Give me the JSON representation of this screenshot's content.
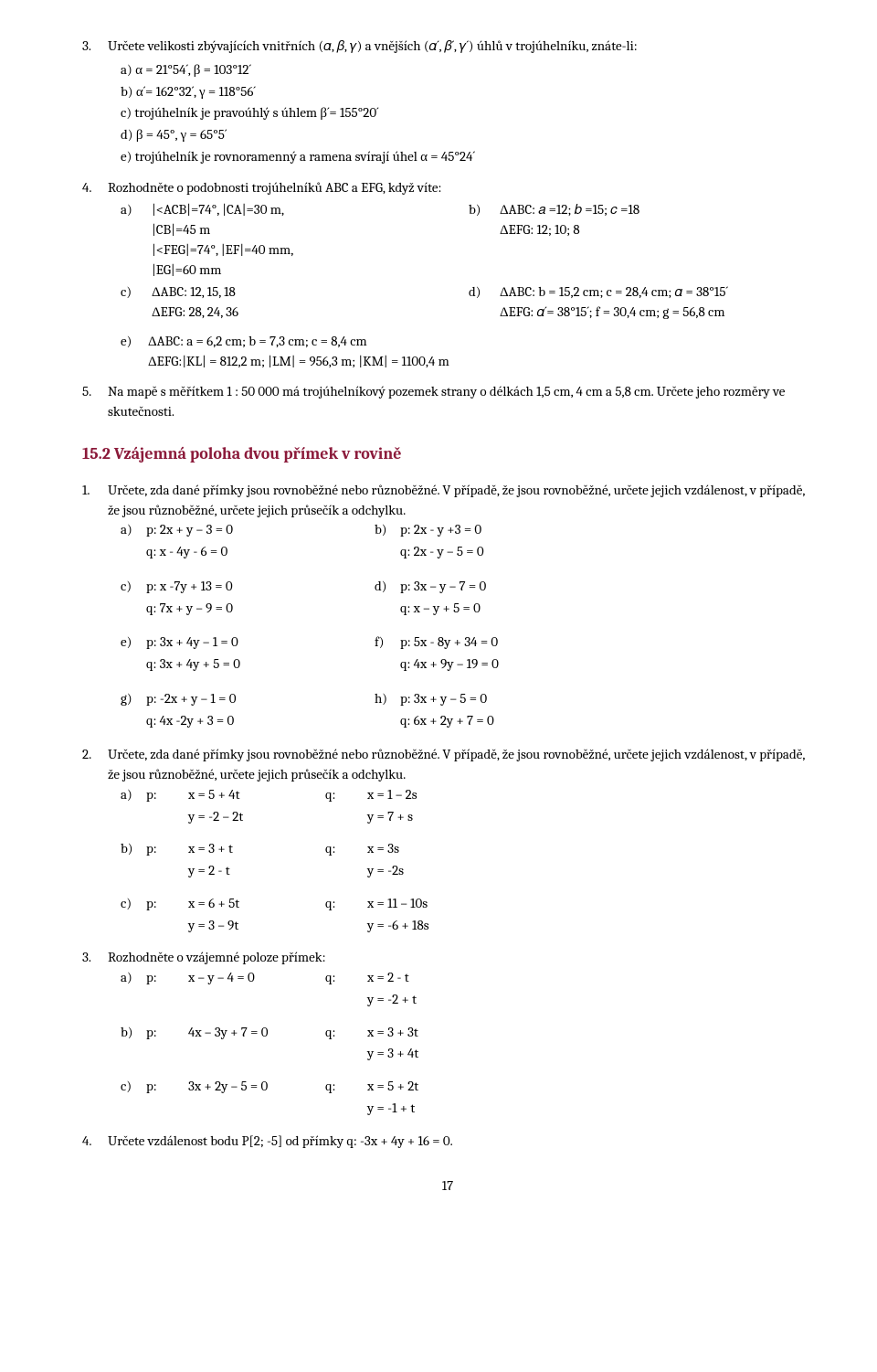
{
  "p3": {
    "text": "Určete velikosti zbývajících vnitřních (𝛼, 𝛽, 𝛾) a vnějších (𝛼´, 𝛽´, 𝛾´) úhlů v trojúhelníku, znáte-li:",
    "a": "α = 21°54´, β = 103°12´",
    "b": "α´= 162°32´, γ = 118°56´",
    "c": "trojúhelník je pravoúhlý s úhlem β´= 155°20´",
    "d": "β = 45°, γ = 65°5´",
    "e": "trojúhelník je rovnoramenný a ramena svírají úhel α = 45°24´"
  },
  "p4": {
    "text": "Rozhodněte o podobnosti trojúhelníků ABC a EFG, když víte:",
    "aL": "|<ACB|=74°, |CA|=30 m,\n|CB|=45 m\n|<FEG|=74°, |EF|=40 mm,\n|EG|=60 mm",
    "bR": "ΔABC: 𝑎 =12; 𝑏 =15; 𝑐 =18\nΔEFG: 12; 10; 8",
    "cL": "ΔABC: 12, 15, 18\nΔEFG: 28, 24, 36",
    "dR": "ΔABC: b = 15,2 cm; c = 28,4 cm; 𝛼 = 38°15´\nΔEFG: 𝛼´= 38°15´; f = 30,4 cm; g = 56,8 cm",
    "e": "ΔABC: a = 6,2 cm; b = 7,3 cm; c = 8,4 cm\nΔEFG:|KL| = 812,2 m; |LM| = 956,3 m; |KM| = 1100,4 m"
  },
  "p5": "Na mapě s měřítkem 1 : 50 000 má trojúhelníkový pozemek strany o délkách 1,5 cm, 4 cm a 5,8 cm. Určete jeho rozměry ve skutečnosti.",
  "heading": "15.2 Vzájemná poloha dvou přímek v rovině",
  "q1": {
    "text": "Určete, zda dané přímky jsou rovnoběžné nebo různoběžné. V případě, že jsou rovnoběžné, určete jejich vzdálenost, v případě, že jsou různoběžné, určete jejich průsečík a odchylku.",
    "rows": [
      [
        "a)",
        "p: 2x + y – 3 = 0",
        "b)",
        "p: 2x - y +3 = 0"
      ],
      [
        "",
        "q: x - 4y - 6 = 0",
        "",
        "q: 2x - y – 5 = 0"
      ],
      [
        "c)",
        "p: x -7y + 13 = 0",
        "d)",
        "p: 3x – y – 7 = 0"
      ],
      [
        "",
        "q: 7x + y – 9 = 0",
        "",
        "q: x – y + 5 = 0"
      ],
      [
        "e)",
        "p: 3x + 4y – 1 = 0",
        "f)",
        "p: 5x - 8y + 34 = 0"
      ],
      [
        "",
        "q: 3x + 4y + 5 = 0",
        "",
        "q: 4x + 9y – 19 = 0"
      ],
      [
        "g)",
        "p: -2x + y – 1 = 0",
        "h)",
        "p: 3x + y – 5 = 0"
      ],
      [
        "",
        "q: 4x -2y + 3 = 0",
        "",
        "q: 6x + 2y + 7 = 0"
      ]
    ]
  },
  "q2": {
    "text": "Určete, zda dané přímky jsou rovnoběžné nebo různoběžné. V případě, že jsou rovnoběžné, určete jejich vzdálenost, v případě, že jsou různoběžné, určete jejich průsečík a odchylku.",
    "rows": [
      [
        "a)",
        "p:",
        "x = 5 + 4t",
        "q:",
        "x = 1 – 2s"
      ],
      [
        "",
        "",
        "y = -2 – 2t",
        "",
        "y = 7 + s"
      ],
      [
        "b)",
        "p:",
        "x = 3 + t",
        "q:",
        "x = 3s"
      ],
      [
        "",
        "",
        "y = 2 - t",
        "",
        "y = -2s"
      ],
      [
        "c)",
        "p:",
        "x = 6 + 5t",
        "q:",
        "x = 11 – 10s"
      ],
      [
        "",
        "",
        "y = 3 – 9t",
        "",
        "y = -6 + 18s"
      ]
    ]
  },
  "q3": {
    "text": "Rozhodněte o vzájemné poloze přímek:",
    "rows": [
      [
        "a)",
        "p:",
        "x – y – 4 = 0",
        "q:",
        "x = 2 - t"
      ],
      [
        "",
        "",
        "",
        "",
        "y = -2 + t"
      ],
      [
        "b)",
        "p:",
        "4x – 3y + 7 = 0",
        "q:",
        "x = 3 + 3t"
      ],
      [
        "",
        "",
        "",
        "",
        "y = 3 + 4t"
      ],
      [
        "c)",
        "p:",
        "3x + 2y – 5 = 0",
        "q:",
        "x = 5 + 2t"
      ],
      [
        "",
        "",
        "",
        "",
        "y = -1 + t"
      ]
    ]
  },
  "q4": "Určete vzdálenost bodu P[2; -5] od přímky q: -3x + 4y + 16 = 0.",
  "pageNum": "17"
}
